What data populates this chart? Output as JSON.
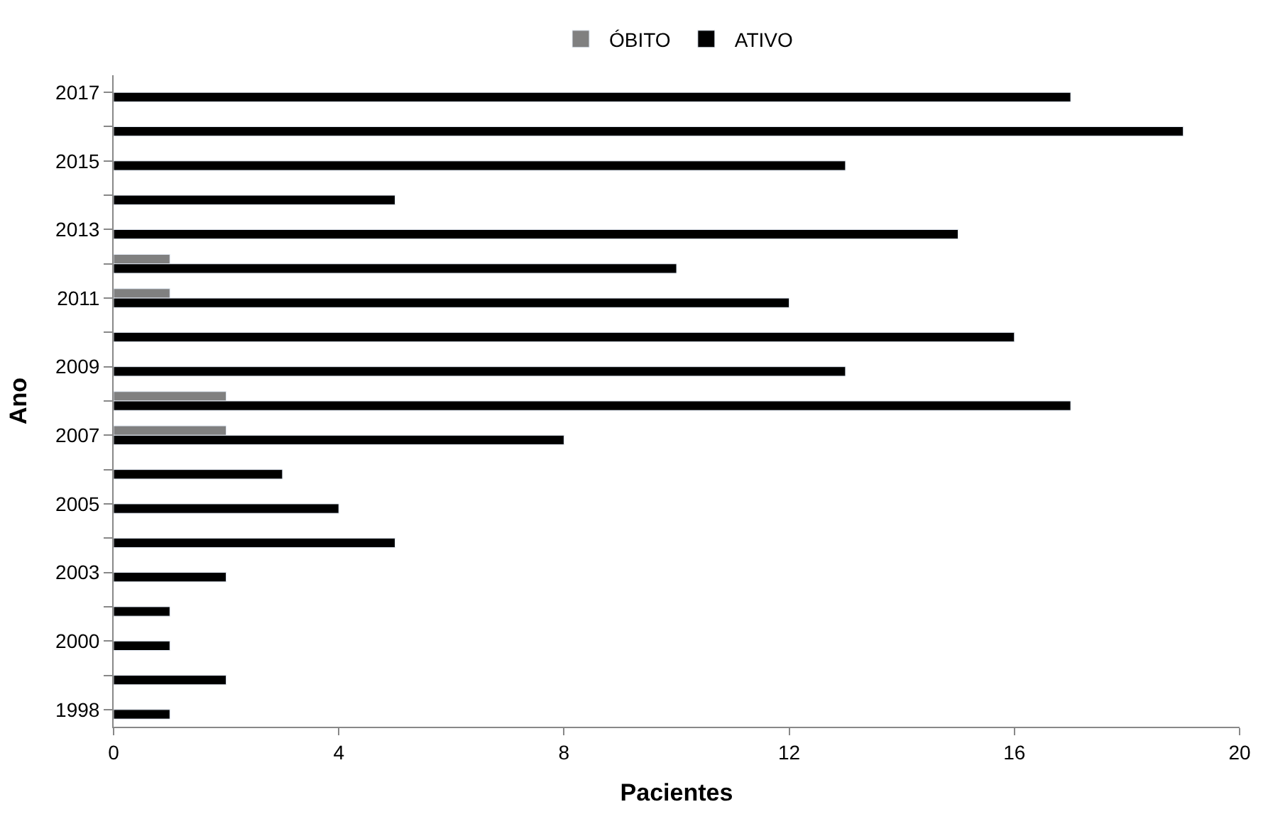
{
  "chart_data": {
    "type": "bar",
    "orientation": "horizontal",
    "xlabel": "Pacientes",
    "ylabel": "Ano",
    "categories": [
      "2017",
      null,
      "2015",
      null,
      "2013",
      null,
      "2011",
      null,
      "2009",
      null,
      "2007",
      null,
      "2005",
      null,
      "2003",
      null,
      "2000",
      null,
      "1998"
    ],
    "series": [
      {
        "name": "ÓBITO",
        "color": "#808080",
        "values": [
          null,
          null,
          null,
          null,
          null,
          1,
          1,
          null,
          null,
          2,
          2,
          null,
          null,
          null,
          null,
          null,
          null,
          null,
          null
        ]
      },
      {
        "name": "ATIVO",
        "color": "#000000",
        "values": [
          17,
          19,
          13,
          5,
          15,
          10,
          12,
          16,
          13,
          17,
          8,
          3,
          4,
          5,
          2,
          1,
          1,
          2,
          1
        ]
      }
    ],
    "xlim": [
      0,
      20
    ],
    "xticks": [
      0,
      4,
      8,
      12,
      16,
      20
    ],
    "legend": "top"
  }
}
